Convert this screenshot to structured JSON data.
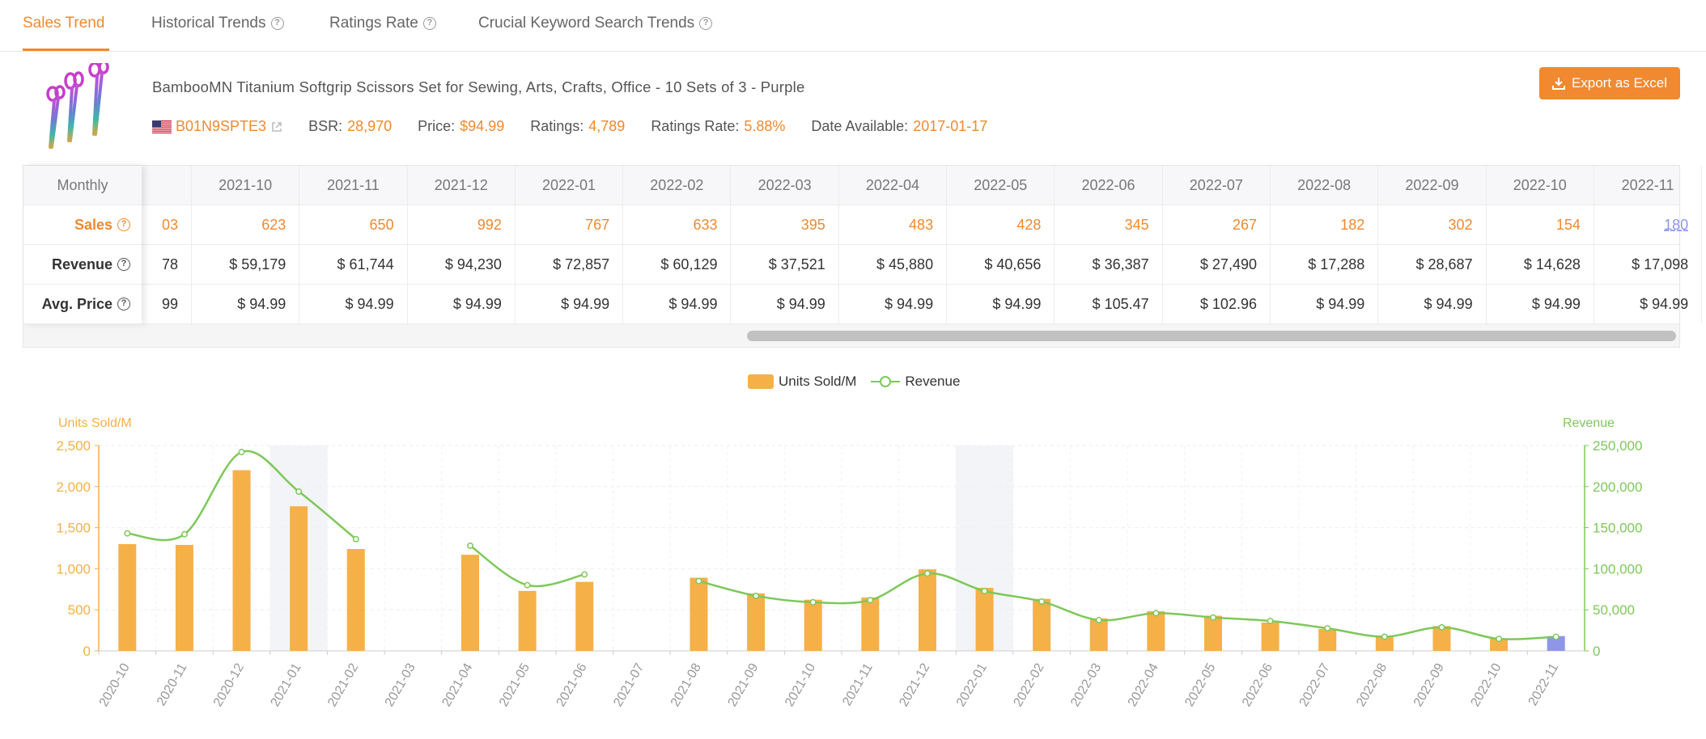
{
  "tabs": [
    {
      "label": "Sales Trend",
      "active": true,
      "help": false
    },
    {
      "label": "Historical Trends",
      "active": false,
      "help": true
    },
    {
      "label": "Ratings Rate",
      "active": false,
      "help": true
    },
    {
      "label": "Crucial Keyword Search Trends",
      "active": false,
      "help": true
    }
  ],
  "product": {
    "title": "BambooMN Titanium Softgrip Scissors Set for Sewing, Arts, Crafts, Office - 10 Sets of 3 - Purple",
    "asin": "B01N9SPTE3",
    "bsr_label": "BSR:",
    "bsr": "28,970",
    "price_label": "Price:",
    "price": "$94.99",
    "ratings_label": "Ratings:",
    "ratings": "4,789",
    "ratings_rate_label": "Ratings Rate:",
    "ratings_rate": "5.88%",
    "date_label": "Date Available:",
    "date": "2017-01-17"
  },
  "export_label": "Export as Excel",
  "table": {
    "corner": "Monthly",
    "row_labels": {
      "sales": "Sales",
      "revenue": "Revenue",
      "avg": "Avg. Price"
    },
    "partial": {
      "sales": "03",
      "revenue": "78",
      "avg": "99"
    },
    "columns": [
      "2021-10",
      "2021-11",
      "2021-12",
      "2022-01",
      "2022-02",
      "2022-03",
      "2022-04",
      "2022-05",
      "2022-06",
      "2022-07",
      "2022-08",
      "2022-09",
      "2022-10",
      "2022-11"
    ],
    "sales": [
      "623",
      "650",
      "992",
      "767",
      "633",
      "395",
      "483",
      "428",
      "345",
      "267",
      "182",
      "302",
      "154",
      "180"
    ],
    "revenue": [
      "$ 59,179",
      "$ 61,744",
      "$ 94,230",
      "$ 72,857",
      "$ 60,129",
      "$ 37,521",
      "$ 45,880",
      "$ 40,656",
      "$ 36,387",
      "$ 27,490",
      "$ 17,288",
      "$ 28,687",
      "$ 14,628",
      "$ 17,098"
    ],
    "avg_price": [
      "$ 94.99",
      "$ 94.99",
      "$ 94.99",
      "$ 94.99",
      "$ 94.99",
      "$ 94.99",
      "$ 94.99",
      "$ 94.99",
      "$ 105.47",
      "$ 102.96",
      "$ 94.99",
      "$ 94.99",
      "$ 94.99",
      "$ 94.99"
    ]
  },
  "chart_data": {
    "type": "bar",
    "legend": [
      "Units Sold/M",
      "Revenue"
    ],
    "legend_position": "top-center",
    "left_axis_label": "Units Sold/M",
    "right_axis_label": "Revenue",
    "ylim_left": [
      0,
      2500
    ],
    "ylim_right": [
      0,
      250000
    ],
    "yticks_left": [
      "0",
      "500",
      "1,000",
      "1,500",
      "2,000",
      "2,500"
    ],
    "yticks_right": [
      "0",
      "50,000",
      "100,000",
      "150,000",
      "200,000",
      "250,000"
    ],
    "categories": [
      "2020-10",
      "2020-11",
      "2020-12",
      "2021-01",
      "2021-02",
      "2021-03",
      "2021-04",
      "2021-05",
      "2021-06",
      "2021-07",
      "2021-08",
      "2021-09",
      "2021-10",
      "2021-11",
      "2021-12",
      "2022-01",
      "2022-02",
      "2022-03",
      "2022-04",
      "2022-05",
      "2022-06",
      "2022-07",
      "2022-08",
      "2022-09",
      "2022-10",
      "2022-11"
    ],
    "series": [
      {
        "name": "Units Sold/M",
        "type": "bar",
        "values": [
          1300,
          1290,
          2200,
          1760,
          1240,
          null,
          1170,
          730,
          840,
          null,
          890,
          700,
          623,
          650,
          992,
          767,
          633,
          395,
          483,
          428,
          345,
          267,
          182,
          302,
          154,
          180
        ]
      },
      {
        "name": "Revenue",
        "type": "line",
        "values": [
          143000,
          142000,
          242000,
          194000,
          136000,
          null,
          128000,
          80000,
          93000,
          null,
          85000,
          67000,
          59179,
          61744,
          94230,
          72857,
          60129,
          37521,
          45880,
          40656,
          36387,
          27490,
          17288,
          28687,
          14628,
          17098
        ]
      }
    ],
    "shaded_categories": [
      "2021-01",
      "2022-01"
    ],
    "highlight_category": "2022-11",
    "grid": true,
    "colors": {
      "bar": "#f5b048",
      "line": "#7dc85a",
      "highlight": "#8f96e8",
      "shade": "#f3f4f8"
    }
  }
}
